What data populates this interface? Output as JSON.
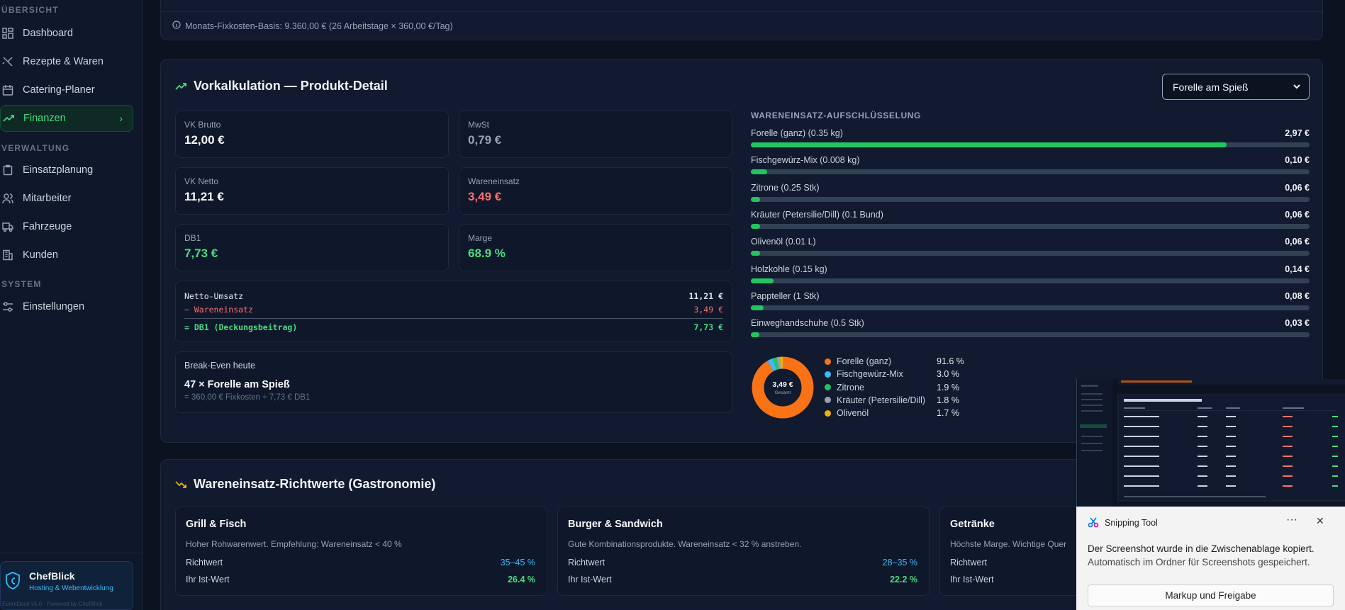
{
  "sidebar": {
    "sections": {
      "overview": "ÜBERSICHT",
      "admin": "VERWALTUNG",
      "system": "SYSTEM"
    },
    "items": [
      {
        "label": "Dashboard",
        "icon": "grid-icon"
      },
      {
        "label": "Rezepte & Waren",
        "icon": "utensils-icon"
      },
      {
        "label": "Catering-Planer",
        "icon": "calendar-icon"
      },
      {
        "label": "Finanzen",
        "icon": "trend-up-icon",
        "active": true
      },
      {
        "label": "Einsatzplanung",
        "icon": "clipboard-icon"
      },
      {
        "label": "Mitarbeiter",
        "icon": "users-icon"
      },
      {
        "label": "Fahrzeuge",
        "icon": "truck-icon"
      },
      {
        "label": "Kunden",
        "icon": "building-icon"
      },
      {
        "label": "Einstellungen",
        "icon": "sliders-icon"
      }
    ],
    "brand": {
      "name": "ChefBlick",
      "sub": "Hosting & Webentwicklung",
      "version": "EventDesk v5.0 · Powered by ChefBlick"
    }
  },
  "fixkosten_info": "Monats-Fixkosten-Basis: 9.360,00 € (26 Arbeitstage × 360,00 €/Tag)",
  "vorkalkulation": {
    "title": "Vorkalkulation — Produkt-Detail",
    "product_select": "Forelle am Spieß",
    "kpis": {
      "vk_brutto": {
        "label": "VK Brutto",
        "value": "12,00 €"
      },
      "mwst": {
        "label": "MwSt",
        "value": "0,79 €"
      },
      "vk_netto": {
        "label": "VK Netto",
        "value": "11,21 €"
      },
      "wareneinsatz": {
        "label": "Wareneinsatz",
        "value": "3,49 €"
      },
      "db1": {
        "label": "DB1",
        "value": "7,73 €"
      },
      "marge": {
        "label": "Marge",
        "value": "68.9 %"
      }
    },
    "calc": {
      "netto_label": "Netto-Umsatz",
      "netto_value": "11,21 €",
      "we_label": "− Wareneinsatz",
      "we_value": "3,49 €",
      "db_label": "= DB1 (Deckungsbeitrag)",
      "db_value": "7,73 €"
    },
    "breakeven": {
      "label": "Break-Even heute",
      "value": "47 × Forelle am Spieß",
      "formula": "= 360,00 € Fixkosten ÷ 7,73 € DB1"
    },
    "breakdown_title": "WARENEINSATZ-AUFSCHLÜSSELUNG",
    "breakdown": [
      {
        "name": "Forelle (ganz) (0.35 kg)",
        "cost": "2,97 €",
        "share": 0.851
      },
      {
        "name": "Fischgewürz-Mix (0.008 kg)",
        "cost": "0,10 €",
        "share": 0.029
      },
      {
        "name": "Zitrone (0.25 Stk)",
        "cost": "0,06 €",
        "share": 0.017
      },
      {
        "name": "Kräuter (Petersilie/Dill) (0.1 Bund)",
        "cost": "0,06 €",
        "share": 0.017
      },
      {
        "name": "Olivenöl (0.01 L)",
        "cost": "0,06 €",
        "share": 0.017
      },
      {
        "name": "Holzkohle (0.15 kg)",
        "cost": "0,14 €",
        "share": 0.04
      },
      {
        "name": "Pappteller (1 Stk)",
        "cost": "0,08 €",
        "share": 0.023
      },
      {
        "name": "Einweghandschuhe (0.5 Stk)",
        "cost": "0,03 €",
        "share": 0.009
      }
    ],
    "donut": {
      "center_value": "3,49 €",
      "center_label": "Gesamt",
      "legend": [
        {
          "name": "Forelle (ganz)",
          "pct": "91.6 %",
          "value": 91.6,
          "color": "#f97316"
        },
        {
          "name": "Fischgewürz-Mix",
          "pct": "3.0 %",
          "value": 3.0,
          "color": "#38bdf8"
        },
        {
          "name": "Zitrone",
          "pct": "1.9 %",
          "value": 1.9,
          "color": "#22c55e"
        },
        {
          "name": "Kräuter (Petersilie/Dill)",
          "pct": "1.8 %",
          "value": 1.8,
          "color": "#94a3b8"
        },
        {
          "name": "Olivenöl",
          "pct": "1.7 %",
          "value": 1.7,
          "color": "#eab308"
        }
      ]
    }
  },
  "richtwerte": {
    "title": "Wareneinsatz-Richtwerte (Gastronomie)",
    "cards": [
      {
        "title": "Grill & Fisch",
        "desc": "Hoher Rohwarenwert. Empfehlung: Wareneinsatz < 40 %",
        "richt_label": "Richtwert",
        "richt": "35–45 %",
        "ist_label": "Ihr Ist-Wert",
        "ist": "26.4 %"
      },
      {
        "title": "Burger & Sandwich",
        "desc": "Gute Kombinationsprodukte. Wareneinsatz < 32 % anstreben.",
        "richt_label": "Richtwert",
        "richt": "28–35 %",
        "ist_label": "Ihr Ist-Wert",
        "ist": "22.2 %"
      },
      {
        "title": "Getränke",
        "desc": "Höchste Marge. Wichtige Quer",
        "richt_label": "Richtwert",
        "richt": "",
        "ist_label": "Ihr Ist-Wert",
        "ist": ""
      }
    ]
  },
  "snipping": {
    "title": "Snipping Tool",
    "msg1": "Der Screenshot wurde in die Zwischenablage kopiert.",
    "msg2": "Automatisch im Ordner für Screenshots gespeichert.",
    "button": "Markup und Freigabe"
  },
  "colors": {
    "accent": "#22c55e",
    "danger": "#f87171",
    "info": "#38bdf8"
  }
}
